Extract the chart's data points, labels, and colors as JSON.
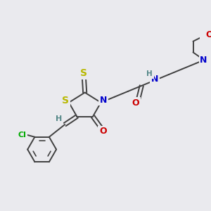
{
  "bg_color": "#eaeaee",
  "atom_colors": {
    "S": "#b8b800",
    "N": "#0000cc",
    "O": "#cc0000",
    "Cl": "#00aa00",
    "H": "#558888",
    "C": "#404040"
  },
  "bond_color": "#404040",
  "bond_width": 1.4
}
